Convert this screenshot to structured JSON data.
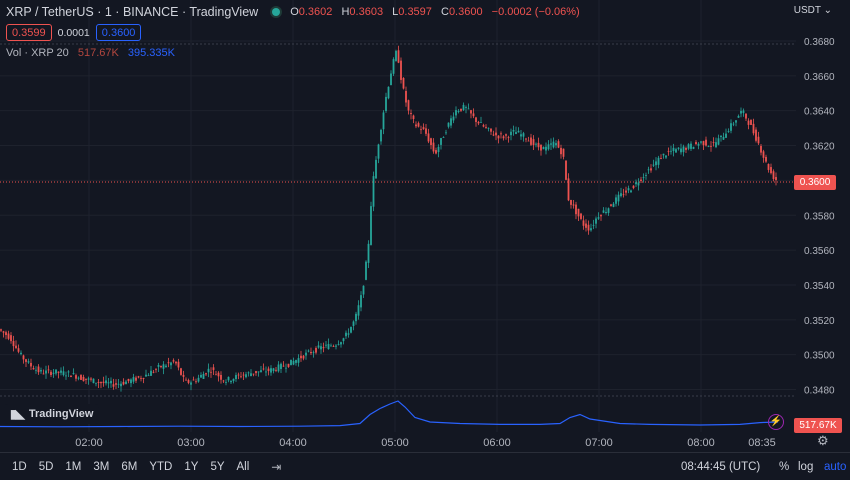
{
  "header": {
    "symbol": "XRP / TetherUS · 1 · BINANCE · TradingView",
    "ohlc": {
      "o_label": "O",
      "o": "0.3602",
      "h_label": "H",
      "h": "0.3603",
      "l_label": "L",
      "l": "0.3597",
      "c_label": "C",
      "c": "0.3600",
      "change": "−0.0002 (−0.06%)"
    }
  },
  "trade": {
    "sell": "0.3599",
    "spread": "0.0001",
    "buy": "0.3600"
  },
  "volume_legend": {
    "label": "Vol · XRP 20",
    "value": "517.67K",
    "ma": "395.335K"
  },
  "currency": "USDT",
  "last_price": "0.3600",
  "last_volume": "517.67K",
  "logo_text": "TradingView",
  "colors": {
    "background": "#131722",
    "up": "#26a69a",
    "down": "#ef5350",
    "volume_line": "#2962ff"
  },
  "bottom_bar": {
    "ranges": [
      "1D",
      "5D",
      "1M",
      "3M",
      "6M",
      "YTD",
      "1Y",
      "5Y",
      "All"
    ],
    "clock": "08:44:45 (UTC)",
    "percent": "%",
    "log": "log",
    "auto": "auto"
  },
  "chart_data": {
    "type": "candlestick",
    "x_ticks": [
      "02:00",
      "03:00",
      "04:00",
      "05:00",
      "06:00",
      "07:00",
      "08:00",
      "08:35"
    ],
    "y_ticks": [
      "0.3680",
      "0.3660",
      "0.3640",
      "0.3620",
      "0.3600",
      "0.3580",
      "0.3560",
      "0.3540",
      "0.3520",
      "0.3500",
      "0.3480"
    ],
    "ylim": [
      0.3474,
      0.3684
    ],
    "price_path": [
      [
        0,
        0.3514
      ],
      [
        10,
        0.351
      ],
      [
        20,
        0.35
      ],
      [
        30,
        0.3494
      ],
      [
        40,
        0.349
      ],
      [
        55,
        0.349
      ],
      [
        70,
        0.3489
      ],
      [
        85,
        0.3486
      ],
      [
        100,
        0.3484
      ],
      [
        115,
        0.3483
      ],
      [
        130,
        0.3485
      ],
      [
        145,
        0.3488
      ],
      [
        160,
        0.3493
      ],
      [
        175,
        0.3496
      ],
      [
        185,
        0.3484
      ],
      [
        195,
        0.3485
      ],
      [
        210,
        0.3492
      ],
      [
        225,
        0.3485
      ],
      [
        240,
        0.3488
      ],
      [
        255,
        0.349
      ],
      [
        270,
        0.3491
      ],
      [
        290,
        0.3495
      ],
      [
        305,
        0.35
      ],
      [
        320,
        0.3504
      ],
      [
        335,
        0.3506
      ],
      [
        345,
        0.351
      ],
      [
        355,
        0.352
      ],
      [
        362,
        0.3535
      ],
      [
        368,
        0.356
      ],
      [
        372,
        0.3595
      ],
      [
        378,
        0.362
      ],
      [
        385,
        0.3645
      ],
      [
        392,
        0.3665
      ],
      [
        397,
        0.3675
      ],
      [
        402,
        0.3655
      ],
      [
        408,
        0.364
      ],
      [
        415,
        0.3632
      ],
      [
        425,
        0.3628
      ],
      [
        435,
        0.3615
      ],
      [
        445,
        0.3628
      ],
      [
        455,
        0.364
      ],
      [
        465,
        0.3642
      ],
      [
        475,
        0.3635
      ],
      [
        485,
        0.363
      ],
      [
        495,
        0.3626
      ],
      [
        505,
        0.3625
      ],
      [
        515,
        0.3628
      ],
      [
        525,
        0.3625
      ],
      [
        535,
        0.362
      ],
      [
        545,
        0.3618
      ],
      [
        555,
        0.3622
      ],
      [
        563,
        0.3615
      ],
      [
        568,
        0.359
      ],
      [
        575,
        0.3583
      ],
      [
        583,
        0.3575
      ],
      [
        590,
        0.3572
      ],
      [
        598,
        0.358
      ],
      [
        606,
        0.3583
      ],
      [
        614,
        0.3588
      ],
      [
        622,
        0.3592
      ],
      [
        632,
        0.3596
      ],
      [
        642,
        0.3602
      ],
      [
        652,
        0.3608
      ],
      [
        662,
        0.3614
      ],
      [
        672,
        0.3617
      ],
      [
        682,
        0.3618
      ],
      [
        692,
        0.362
      ],
      [
        702,
        0.3622
      ],
      [
        712,
        0.362
      ],
      [
        722,
        0.3625
      ],
      [
        732,
        0.3632
      ],
      [
        742,
        0.364
      ],
      [
        750,
        0.3632
      ],
      [
        758,
        0.3622
      ],
      [
        766,
        0.361
      ],
      [
        772,
        0.3603
      ],
      [
        777,
        0.36
      ]
    ],
    "volume_path": [
      [
        0,
        0.05
      ],
      [
        60,
        0.04
      ],
      [
        120,
        0.05
      ],
      [
        180,
        0.06
      ],
      [
        240,
        0.05
      ],
      [
        300,
        0.06
      ],
      [
        340,
        0.08
      ],
      [
        360,
        0.15
      ],
      [
        370,
        0.45
      ],
      [
        380,
        0.65
      ],
      [
        390,
        0.8
      ],
      [
        398,
        0.9
      ],
      [
        405,
        0.7
      ],
      [
        415,
        0.35
      ],
      [
        430,
        0.2
      ],
      [
        460,
        0.15
      ],
      [
        500,
        0.12
      ],
      [
        540,
        0.12
      ],
      [
        560,
        0.15
      ],
      [
        570,
        0.35
      ],
      [
        580,
        0.45
      ],
      [
        590,
        0.3
      ],
      [
        600,
        0.25
      ],
      [
        620,
        0.15
      ],
      [
        650,
        0.12
      ],
      [
        700,
        0.1
      ],
      [
        740,
        0.12
      ],
      [
        760,
        0.18
      ],
      [
        778,
        0.2
      ]
    ]
  }
}
